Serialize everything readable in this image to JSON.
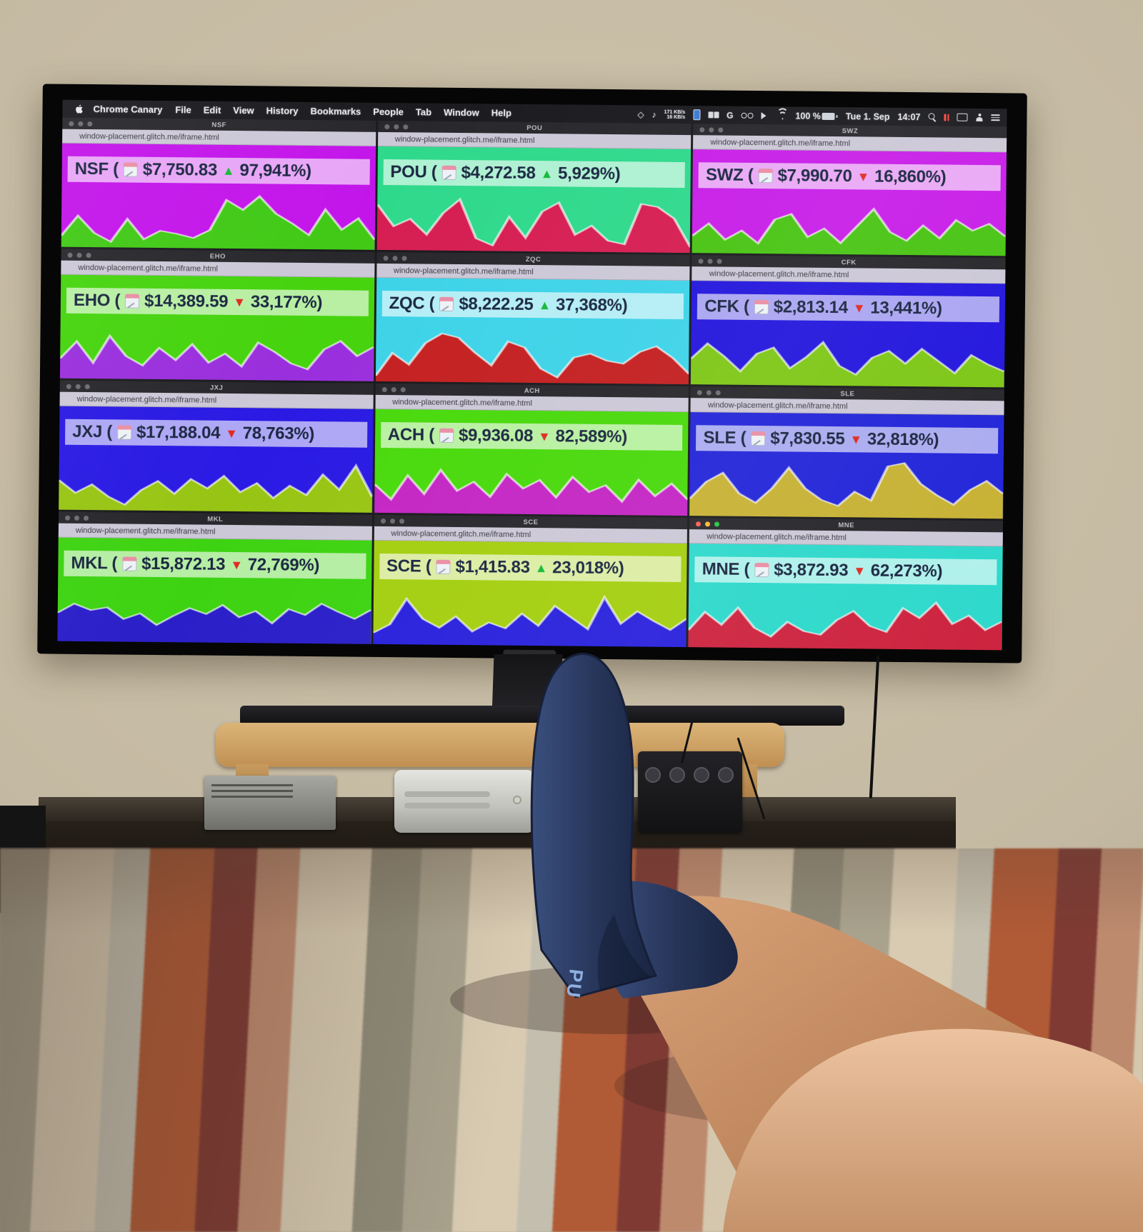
{
  "menubar": {
    "app_name": "Chrome Canary",
    "menus": [
      "File",
      "Edit",
      "View",
      "History",
      "Bookmarks",
      "People",
      "Tab",
      "Window",
      "Help"
    ],
    "status": {
      "net_up": "171 KB/s",
      "net_down": "16 KB/s",
      "google_glyph": "G",
      "battery": "100 %",
      "date": "Tue 1. Sep",
      "time": "14:07"
    }
  },
  "window_url": "window-placement.glitch.me/iframe.html",
  "ui": {
    "up_glyph": "▲",
    "down_glyph": "▼",
    "diamond_glyph": "◇",
    "note_glyph": "♪"
  },
  "windows": [
    {
      "title": "NSF",
      "label": "NSF (",
      "price": "$7,750.83",
      "dir": "up",
      "change": "97,941%)",
      "bg": "#c315ea",
      "chart": "#41c916",
      "focused": false,
      "points": [
        0.2,
        0.55,
        0.25,
        0.1,
        0.5,
        0.15,
        0.3,
        0.25,
        0.18,
        0.32,
        0.85,
        0.68,
        0.92,
        0.62,
        0.45,
        0.25,
        0.7,
        0.35,
        0.55,
        0.18
      ]
    },
    {
      "title": "POU",
      "label": "POU (",
      "price": "$4,272.58",
      "dir": "up",
      "change": "5,929%)",
      "bg": "#2fd98c",
      "chart": "#d61e52",
      "focused": false,
      "points": [
        0.8,
        0.42,
        0.55,
        0.28,
        0.66,
        0.9,
        0.22,
        0.1,
        0.6,
        0.24,
        0.7,
        0.86,
        0.3,
        0.46,
        0.2,
        0.14,
        0.85,
        0.8,
        0.6,
        0.1
      ]
    },
    {
      "title": "SWZ",
      "label": "SWZ (",
      "price": "$7,990.70",
      "dir": "down",
      "change": "16,860%)",
      "bg": "#c81fe8",
      "chart": "#49c414",
      "focused": false,
      "points": [
        0.3,
        0.52,
        0.24,
        0.4,
        0.18,
        0.6,
        0.7,
        0.3,
        0.45,
        0.2,
        0.5,
        0.8,
        0.4,
        0.25,
        0.52,
        0.3,
        0.62,
        0.44,
        0.56,
        0.34
      ]
    },
    {
      "title": "EHO",
      "label": "EHO (",
      "price": "$14,389.59",
      "dir": "down",
      "change": "33,177%)",
      "bg": "#46d40e",
      "chart": "#9a2fdd",
      "focused": false,
      "points": [
        0.35,
        0.65,
        0.28,
        0.75,
        0.4,
        0.24,
        0.55,
        0.34,
        0.62,
        0.3,
        0.46,
        0.24,
        0.66,
        0.5,
        0.3,
        0.2,
        0.55,
        0.7,
        0.44,
        0.6
      ]
    },
    {
      "title": "ZQC",
      "label": "ZQC (",
      "price": "$8,222.25",
      "dir": "up",
      "change": "37,368%)",
      "bg": "#3ed3e8",
      "chart": "#c42021",
      "focused": false,
      "points": [
        0.1,
        0.5,
        0.3,
        0.68,
        0.85,
        0.78,
        0.52,
        0.3,
        0.72,
        0.62,
        0.25,
        0.1,
        0.45,
        0.52,
        0.4,
        0.35,
        0.56,
        0.66,
        0.46,
        0.18
      ]
    },
    {
      "title": "CFK",
      "label": "CFK (",
      "price": "$2,813.14",
      "dir": "down",
      "change": "13,441%)",
      "bg": "#2417dd",
      "chart": "#7ec717",
      "focused": false,
      "points": [
        0.45,
        0.72,
        0.5,
        0.24,
        0.55,
        0.66,
        0.3,
        0.5,
        0.76,
        0.35,
        0.2,
        0.5,
        0.62,
        0.4,
        0.66,
        0.45,
        0.24,
        0.56,
        0.4,
        0.28
      ]
    },
    {
      "title": "JXJ",
      "label": "JXJ (",
      "price": "$17,188.04",
      "dir": "down",
      "change": "78,763%)",
      "bg": "#2a1ae4",
      "chart": "#98c514",
      "focused": false,
      "points": [
        0.52,
        0.3,
        0.45,
        0.24,
        0.1,
        0.36,
        0.52,
        0.3,
        0.56,
        0.4,
        0.62,
        0.34,
        0.5,
        0.24,
        0.46,
        0.3,
        0.66,
        0.4,
        0.82,
        0.28
      ]
    },
    {
      "title": "ACH",
      "label": "ACH (",
      "price": "$9,936.08",
      "dir": "down",
      "change": "82,589%)",
      "bg": "#49d90c",
      "chart": "#c426c4",
      "focused": false,
      "points": [
        0.5,
        0.24,
        0.66,
        0.34,
        0.76,
        0.4,
        0.56,
        0.3,
        0.7,
        0.45,
        0.6,
        0.3,
        0.66,
        0.4,
        0.52,
        0.24,
        0.62,
        0.34,
        0.56,
        0.28
      ]
    },
    {
      "title": "SLE",
      "label": "SLE (",
      "price": "$7,830.55",
      "dir": "down",
      "change": "32,818%)",
      "bg": "#2326d8",
      "chart": "#c7b235",
      "focused": false,
      "points": [
        0.3,
        0.6,
        0.76,
        0.4,
        0.24,
        0.5,
        0.86,
        0.5,
        0.3,
        0.2,
        0.45,
        0.3,
        0.9,
        0.96,
        0.6,
        0.4,
        0.24,
        0.5,
        0.66,
        0.44
      ]
    },
    {
      "title": "MKL",
      "label": "MKL (",
      "price": "$15,872.13",
      "dir": "down",
      "change": "72,769%)",
      "bg": "#3ed312",
      "chart": "#2b1fc9",
      "focused": false,
      "points": [
        0.5,
        0.66,
        0.55,
        0.6,
        0.4,
        0.5,
        0.3,
        0.46,
        0.6,
        0.5,
        0.66,
        0.45,
        0.56,
        0.35,
        0.6,
        0.5,
        0.7,
        0.56,
        0.44,
        0.6
      ]
    },
    {
      "title": "SCE",
      "label": "SCE (",
      "price": "$1,415.83",
      "dir": "up",
      "change": "23,018%)",
      "bg": "#a4cf10",
      "chart": "#2921dc",
      "focused": false,
      "points": [
        0.2,
        0.35,
        0.8,
        0.45,
        0.3,
        0.5,
        0.24,
        0.4,
        0.3,
        0.56,
        0.35,
        0.7,
        0.5,
        0.3,
        0.86,
        0.4,
        0.62,
        0.45,
        0.3,
        0.5
      ]
    },
    {
      "title": "MNE",
      "label": "MNE (",
      "price": "$3,872.93",
      "dir": "down",
      "change": "62,273%)",
      "bg": "#2ed9cb",
      "chart": "#cd2440",
      "focused": true,
      "points": [
        0.3,
        0.62,
        0.4,
        0.7,
        0.35,
        0.2,
        0.46,
        0.3,
        0.24,
        0.5,
        0.66,
        0.4,
        0.3,
        0.72,
        0.55,
        0.82,
        0.45,
        0.6,
        0.35,
        0.5
      ]
    }
  ],
  "scene": {
    "sock_text": "PU"
  }
}
